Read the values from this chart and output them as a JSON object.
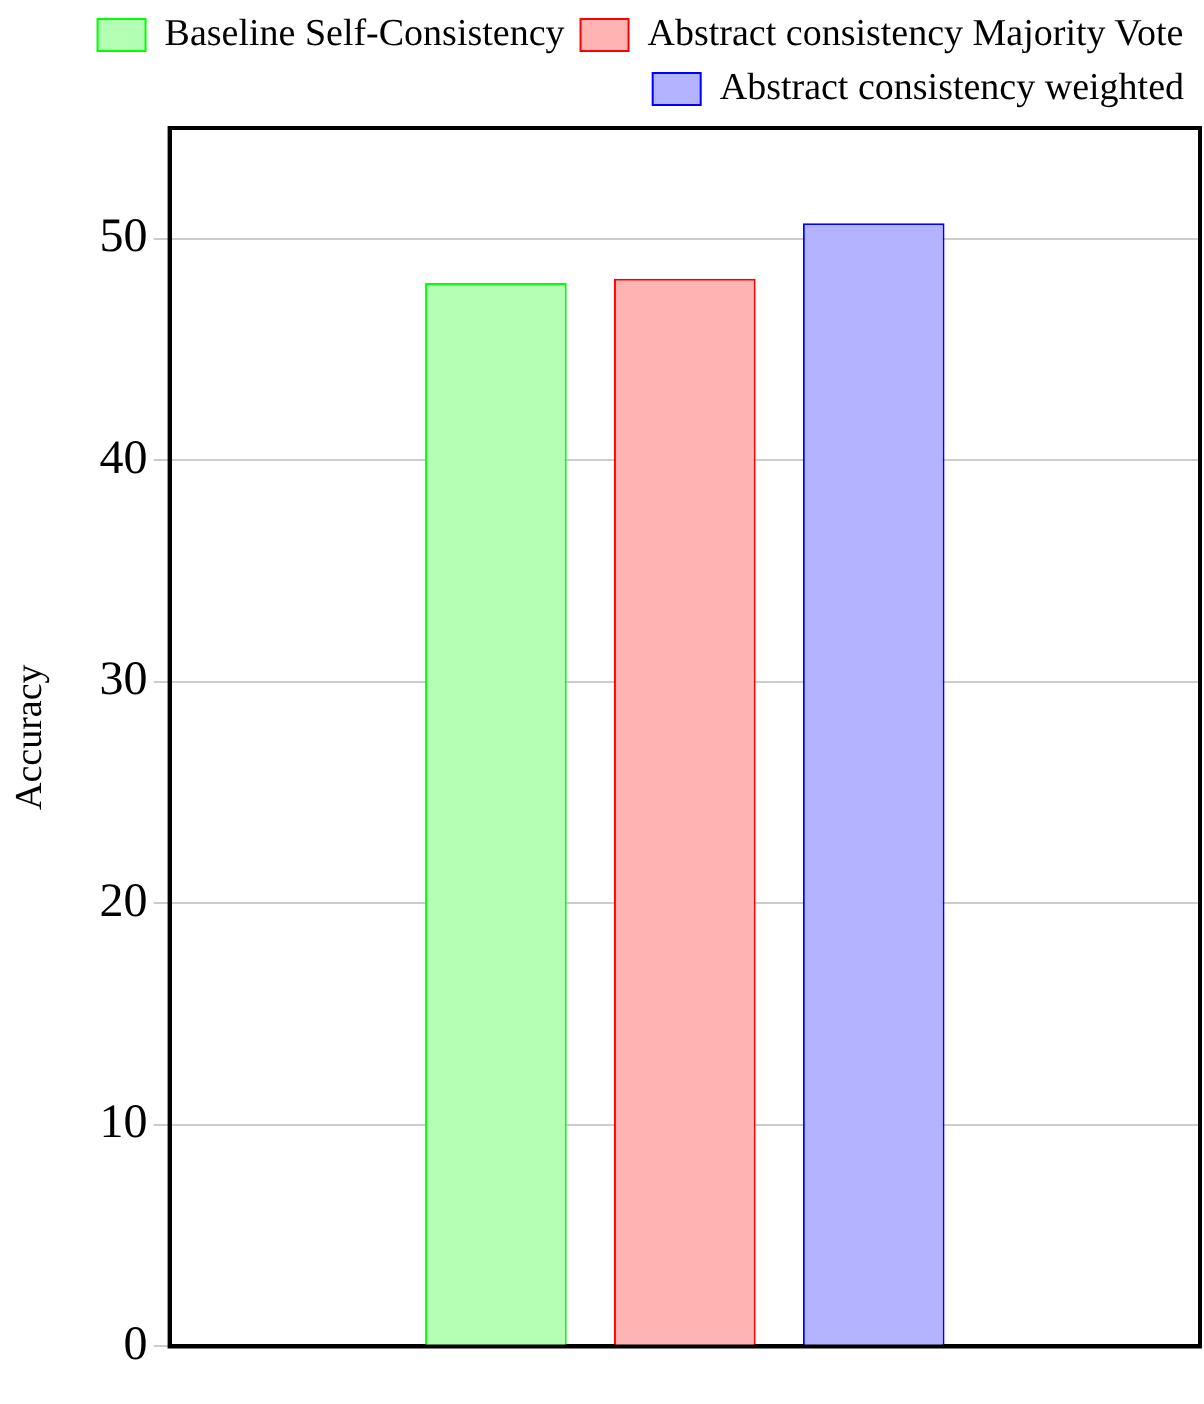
{
  "chart_data": {
    "type": "bar",
    "ylabel": "Accuracy",
    "categories": [
      null
    ],
    "series": [
      {
        "name": "Baseline Self-Consistency",
        "color": "#b3ffb3",
        "values": [
          48.0
        ]
      },
      {
        "name": "Abstract consistency Majority Vote",
        "color": "#ffb3b3",
        "values": [
          48.2
        ]
      },
      {
        "name": "Abstract consistency weighted",
        "color": "#b3b3ff",
        "values": [
          50.7
        ]
      }
    ],
    "ylim": [
      0,
      55
    ],
    "yticks": [
      0,
      10,
      20,
      30,
      40,
      50
    ],
    "grid": "y",
    "legend": "top right"
  }
}
